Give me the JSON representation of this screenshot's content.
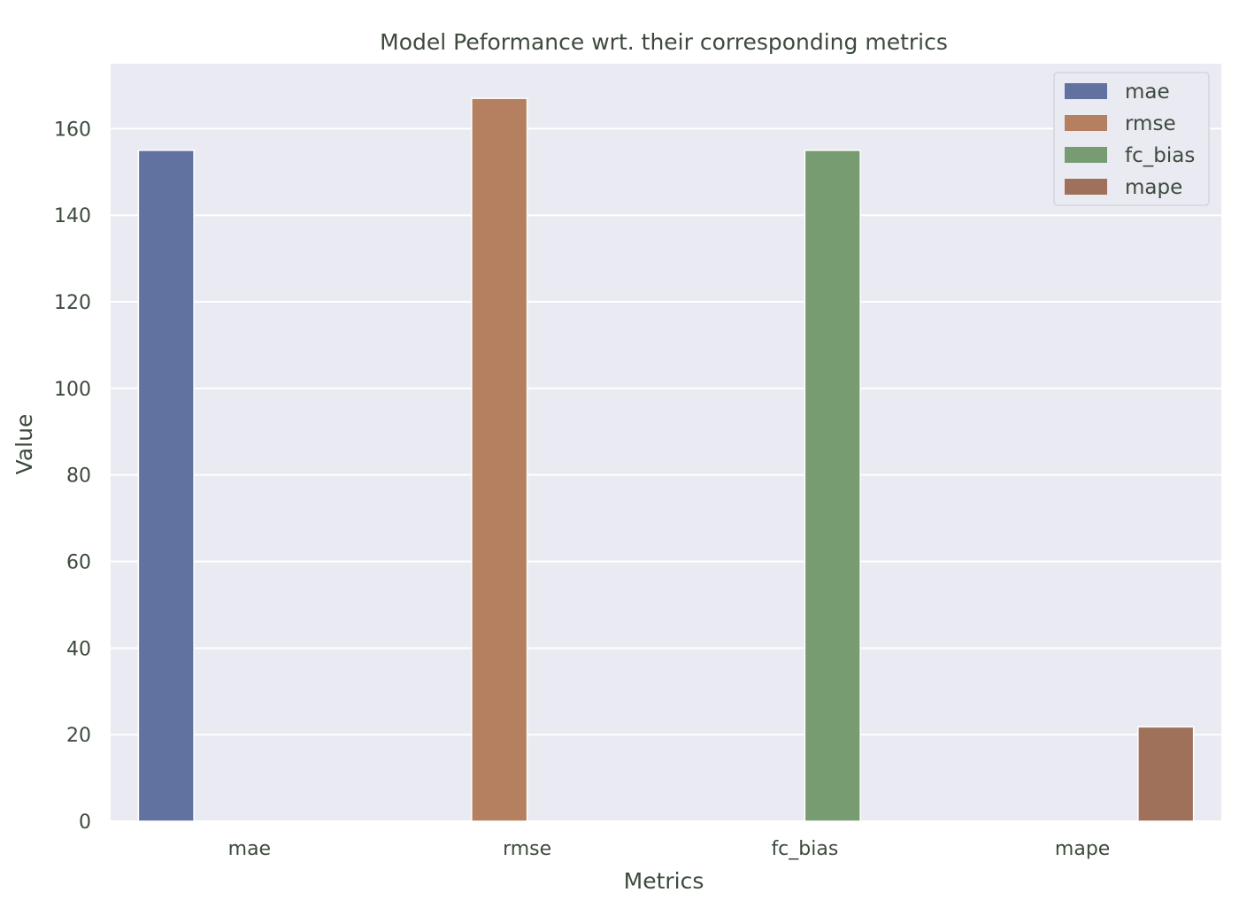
{
  "chart_data": {
    "type": "bar",
    "title": "Model Peformance wrt. their corresponding metrics",
    "xlabel": "Metrics",
    "ylabel": "Value",
    "categories": [
      "mae",
      "rmse",
      "fc_bias",
      "mape"
    ],
    "ylim": [
      0,
      175
    ],
    "yticks": [
      0,
      20,
      40,
      60,
      80,
      100,
      120,
      140,
      160
    ],
    "grid": true,
    "legend_position": "top-right",
    "series": [
      {
        "name": "mae",
        "color": "#6272a0",
        "values": [
          155,
          null,
          null,
          null
        ]
      },
      {
        "name": "rmse",
        "color": "#b4805f",
        "values": [
          null,
          167,
          null,
          null
        ]
      },
      {
        "name": "fc_bias",
        "color": "#789c72",
        "values": [
          null,
          null,
          155,
          null
        ]
      },
      {
        "name": "mape",
        "color": "#a0715a",
        "values": [
          null,
          null,
          null,
          21.8
        ]
      }
    ],
    "colors": {
      "plot_background": "#eaeaf2",
      "grid": "#ffffff",
      "text": "#3d4a3d"
    }
  }
}
